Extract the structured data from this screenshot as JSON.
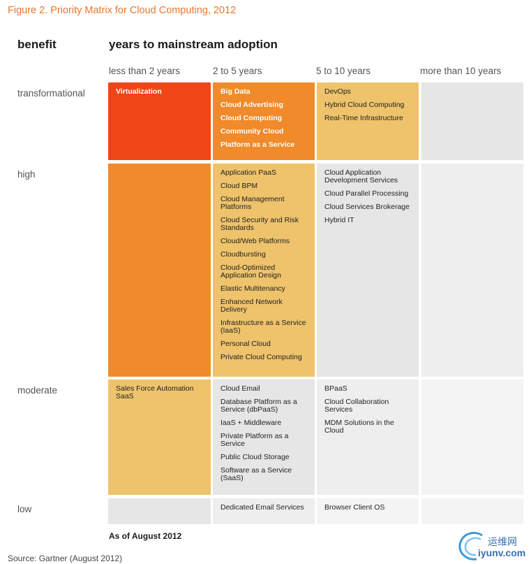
{
  "figure_title": "Figure 2. Priority Matrix for Cloud Computing, 2012",
  "header_benefit": "benefit",
  "header_years": "years to mainstream adoption",
  "as_of": "As of August 2012",
  "source": "Source: Gartner (August 2012)",
  "watermark": {
    "cn": "运维网",
    "en": "iyunv.com"
  },
  "colors": {
    "title": "#e8782a",
    "red": "#ee4617",
    "orange": "#f08a2b",
    "yellow": "#eec36b",
    "gray": "#e6e6e6",
    "light_gray": "#eeeeee",
    "pale": "#f4f4f4"
  },
  "chart_data": {
    "type": "table",
    "columns": [
      "less than 2 years",
      "2 to 5 years",
      "5 to 10 years",
      "more than 10 years"
    ],
    "rows": [
      "transformational",
      "high",
      "moderate",
      "low"
    ],
    "cells": [
      [
        [
          "Virtualization"
        ],
        [
          "Big Data",
          "Cloud Advertising",
          "Cloud Computing",
          "Community Cloud",
          "Platform as a Service"
        ],
        [
          "DevOps",
          "Hybrid Cloud Computing",
          "Real-Time Infrastructure"
        ],
        []
      ],
      [
        [],
        [
          "Application PaaS",
          "Cloud BPM",
          "Cloud Management Platforms",
          "Cloud Security and Risk Standards",
          "Cloud/Web Platforms",
          "Cloudbursting",
          "Cloud-Optimized Application Design",
          "Elastic Multitenancy",
          "Enhanced Network Delivery",
          "Infrastructure as a Service (IaaS)",
          "Personal Cloud",
          "Private Cloud Computing"
        ],
        [
          "Cloud Application Development Services",
          "Cloud Parallel Processing",
          "Cloud Services Brokerage",
          "Hybrid IT"
        ],
        []
      ],
      [
        [
          "Sales Force Automation SaaS"
        ],
        [
          "Cloud Email",
          "Database Platform as a Service (dbPaaS)",
          "IaaS + Middleware",
          "Private Platform as a Service",
          "Public Cloud Storage",
          "Software as a Service (SaaS)"
        ],
        [
          "BPaaS",
          "Cloud Collaboration Services",
          "MDM Solutions in the Cloud"
        ],
        []
      ],
      [
        [],
        [
          "Dedicated Email Services"
        ],
        [
          "Browser Client OS"
        ],
        []
      ]
    ]
  }
}
